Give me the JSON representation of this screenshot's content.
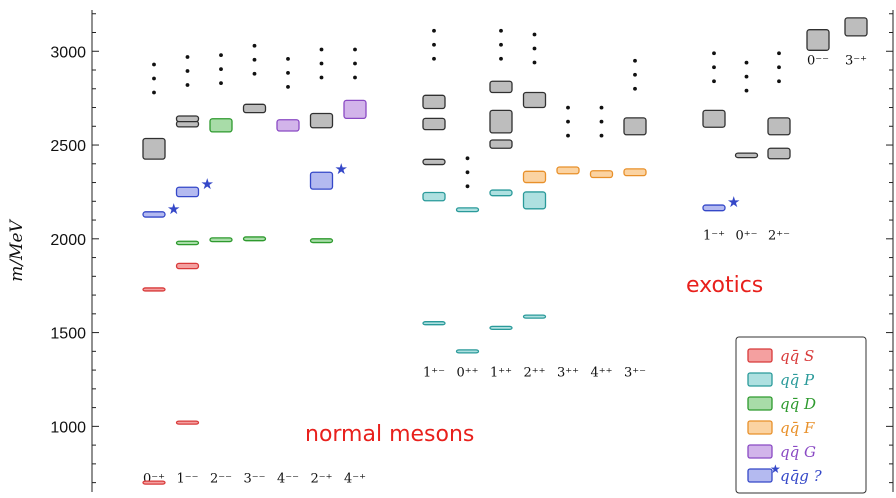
{
  "chart_data": {
    "type": "level-diagram",
    "title": "",
    "ylabel": "m/MeV",
    "ylim": [
      650,
      3220
    ],
    "yticks": [
      1000,
      1500,
      2000,
      2500,
      3000
    ],
    "annotations": {
      "normal": "normal mesons",
      "exotics": "exotics"
    },
    "colors": {
      "S": {
        "fill": "#f4a0a0",
        "stroke": "#d83a3a"
      },
      "P": {
        "fill": "#aee0e0",
        "stroke": "#2a9a9a"
      },
      "D": {
        "fill": "#a8dca8",
        "stroke": "#2e9a2e"
      },
      "F": {
        "fill": "#fbd3a2",
        "stroke": "#e8902a"
      },
      "G": {
        "fill": "#d2b4ea",
        "stroke": "#8a4ac4"
      },
      "H": {
        "fill": "#b4baf0",
        "stroke": "#3548c8"
      },
      "U": {
        "fill": "#bdbdbd",
        "stroke": "#303030"
      }
    },
    "legend": [
      {
        "key": "S",
        "label": "qq̄ S"
      },
      {
        "key": "P",
        "label": "qq̄ P"
      },
      {
        "key": "D",
        "label": "qq̄ D"
      },
      {
        "key": "F",
        "label": "qq̄ F"
      },
      {
        "key": "G",
        "label": "qq̄ G"
      },
      {
        "key": "H",
        "label": "qq̄g ?"
      }
    ],
    "groups": [
      {
        "labels_y": 700,
        "columns": [
          {
            "jpc": "0⁻⁺",
            "states": [
              {
                "m": 700,
                "dm": 8,
                "t": "S"
              },
              {
                "m": 1730,
                "dm": 8,
                "t": "S"
              },
              {
                "m": 2130,
                "dm": 14,
                "t": "H",
                "star": true
              },
              {
                "m": 2480,
                "dm": 55,
                "t": "U"
              }
            ],
            "dots_from": 2780
          },
          {
            "jpc": "1⁻⁻",
            "states": [
              {
                "m": 1020,
                "dm": 5,
                "t": "S"
              },
              {
                "m": 1855,
                "dm": 14,
                "t": "S"
              },
              {
                "m": 1978,
                "dm": 9,
                "t": "D"
              },
              {
                "m": 2250,
                "dm": 25,
                "t": "H",
                "star": true
              },
              {
                "m": 2612,
                "dm": 15,
                "t": "U"
              },
              {
                "m": 2640,
                "dm": 15,
                "t": "U"
              }
            ],
            "dots_from": 2820
          },
          {
            "jpc": "2⁻⁻",
            "states": [
              {
                "m": 1995,
                "dm": 10,
                "t": "D"
              },
              {
                "m": 2605,
                "dm": 35,
                "t": "D"
              }
            ],
            "dots_from": 2830
          },
          {
            "jpc": "3⁻⁻",
            "states": [
              {
                "m": 2000,
                "dm": 10,
                "t": "D"
              },
              {
                "m": 2695,
                "dm": 22,
                "t": "U"
              }
            ],
            "dots_from": 2880
          },
          {
            "jpc": "4⁻⁻",
            "states": [
              {
                "m": 2605,
                "dm": 30,
                "t": "G"
              }
            ],
            "dots_from": 2810
          },
          {
            "jpc": "2⁻⁺",
            "states": [
              {
                "m": 1990,
                "dm": 10,
                "t": "D"
              },
              {
                "m": 2310,
                "dm": 45,
                "t": "H",
                "star": true
              },
              {
                "m": 2630,
                "dm": 38,
                "t": "U"
              }
            ],
            "dots_from": 2860
          },
          {
            "jpc": "4⁻⁺",
            "states": [
              {
                "m": 2690,
                "dm": 48,
                "t": "G"
              }
            ],
            "dots_from": 2860
          }
        ]
      },
      {
        "labels_y": 1265,
        "columns": [
          {
            "jpc": "1⁺⁻",
            "states": [
              {
                "m": 1550,
                "dm": 6,
                "t": "P"
              },
              {
                "m": 2225,
                "dm": 22,
                "t": "P"
              },
              {
                "m": 2410,
                "dm": 14,
                "t": "U"
              },
              {
                "m": 2612,
                "dm": 30,
                "t": "U"
              },
              {
                "m": 2730,
                "dm": 35,
                "t": "U"
              }
            ],
            "dots_from": 2960
          },
          {
            "jpc": "0⁺⁺",
            "states": [
              {
                "m": 1400,
                "dm": 8,
                "t": "P"
              },
              {
                "m": 2155,
                "dm": 10,
                "t": "P"
              }
            ],
            "dots_from": 2280
          },
          {
            "jpc": "1⁺⁺",
            "states": [
              {
                "m": 1525,
                "dm": 6,
                "t": "P"
              },
              {
                "m": 2245,
                "dm": 15,
                "t": "P"
              },
              {
                "m": 2505,
                "dm": 22,
                "t": "U"
              },
              {
                "m": 2625,
                "dm": 60,
                "t": "U"
              },
              {
                "m": 2810,
                "dm": 30,
                "t": "U"
              }
            ],
            "dots_from": 2960
          },
          {
            "jpc": "2⁺⁺",
            "states": [
              {
                "m": 1585,
                "dm": 6,
                "t": "P"
              },
              {
                "m": 2205,
                "dm": 45,
                "t": "P"
              },
              {
                "m": 2330,
                "dm": 30,
                "t": "F"
              },
              {
                "m": 2740,
                "dm": 40,
                "t": "U"
              }
            ],
            "dots_from": 2940
          },
          {
            "jpc": "3⁺⁺",
            "states": [
              {
                "m": 2365,
                "dm": 18,
                "t": "F"
              }
            ],
            "dots_from": 2550
          },
          {
            "jpc": "4⁺⁺",
            "states": [
              {
                "m": 2345,
                "dm": 18,
                "t": "F"
              }
            ],
            "dots_from": 2550
          },
          {
            "jpc": "3⁺⁻",
            "states": [
              {
                "m": 2355,
                "dm": 18,
                "t": "F"
              },
              {
                "m": 2600,
                "dm": 45,
                "t": "U"
              }
            ],
            "dots_from": 2800
          }
        ]
      },
      {
        "labels_y": 1995,
        "columns": [
          {
            "jpc": "1⁻⁺",
            "states": [
              {
                "m": 2165,
                "dm": 15,
                "t": "H",
                "star": true
              },
              {
                "m": 2640,
                "dm": 45,
                "t": "U"
              }
            ],
            "dots_from": 2840
          },
          {
            "jpc": "0⁺⁻",
            "states": [
              {
                "m": 2445,
                "dm": 12,
                "t": "U"
              }
            ],
            "dots_from": 2790
          },
          {
            "jpc": "2⁺⁻",
            "states": [
              {
                "m": 2455,
                "dm": 28,
                "t": "U"
              },
              {
                "m": 2600,
                "dm": 45,
                "t": "U"
              }
            ],
            "dots_from": 2840
          }
        ]
      },
      {
        "labels_y": 2930,
        "columns": [
          {
            "jpc": "0⁻⁻",
            "states": [
              {
                "m": 3060,
                "dm": 55,
                "t": "U"
              }
            ]
          },
          {
            "jpc": "3⁻⁺",
            "states": [
              {
                "m": 3130,
                "dm": 48,
                "t": "U"
              }
            ]
          }
        ]
      }
    ]
  }
}
